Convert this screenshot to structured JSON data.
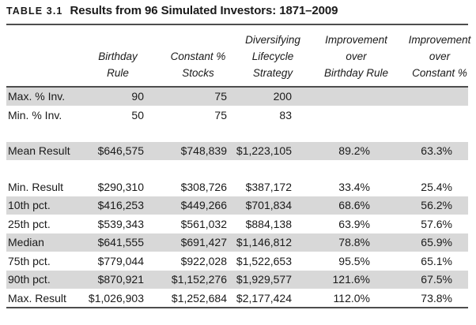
{
  "title": {
    "label": "TABLE 3.1",
    "text": "Results from 96 Simulated Investors: 1871–2009"
  },
  "table": {
    "columns": [
      "",
      "Birthday\nRule",
      "Constant %\nStocks",
      "Diversifying\nLifecycle\nStrategy",
      "Improvement\nover\nBirthday Rule",
      "Improvement\nover\nConstant %"
    ],
    "rows": [
      {
        "label": "Max. % Inv.",
        "values": [
          "90",
          "75",
          "200",
          "",
          ""
        ],
        "shaded": true,
        "blank": false
      },
      {
        "label": "Min. % Inv.",
        "values": [
          "50",
          "75",
          "83",
          "",
          ""
        ],
        "shaded": false,
        "blank": false
      },
      {
        "label": "",
        "values": [
          "",
          "",
          "",
          "",
          ""
        ],
        "shaded": false,
        "blank": true
      },
      {
        "label": "Mean Result",
        "values": [
          "$646,575",
          "$748,839",
          "$1,223,105",
          "89.2%",
          "63.3%"
        ],
        "shaded": true,
        "blank": false
      },
      {
        "label": "",
        "values": [
          "",
          "",
          "",
          "",
          ""
        ],
        "shaded": false,
        "blank": true
      },
      {
        "label": "Min. Result",
        "values": [
          "$290,310",
          "$308,726",
          "$387,172",
          "33.4%",
          "25.4%"
        ],
        "shaded": false,
        "blank": false
      },
      {
        "label": "10th pct.",
        "values": [
          "$416,253",
          "$449,266",
          "$701,834",
          "68.6%",
          "56.2%"
        ],
        "shaded": true,
        "blank": false
      },
      {
        "label": "25th pct.",
        "values": [
          "$539,343",
          "$561,032",
          "$884,138",
          "63.9%",
          "57.6%"
        ],
        "shaded": false,
        "blank": false
      },
      {
        "label": "Median",
        "values": [
          "$641,555",
          "$691,427",
          "$1,146,812",
          "78.8%",
          "65.9%"
        ],
        "shaded": true,
        "blank": false
      },
      {
        "label": "75th pct.",
        "values": [
          "$779,044",
          "$922,028",
          "$1,522,653",
          "95.5%",
          "65.1%"
        ],
        "shaded": false,
        "blank": false
      },
      {
        "label": "90th pct.",
        "values": [
          "$870,921",
          "$1,152,276",
          "$1,929,577",
          "121.6%",
          "67.5%"
        ],
        "shaded": true,
        "blank": false
      },
      {
        "label": "Max. Result",
        "values": [
          "$1,026,903",
          "$1,252,684",
          "$2,177,424",
          "112.0%",
          "73.8%"
        ],
        "shaded": false,
        "blank": false
      }
    ]
  },
  "colors": {
    "row_shade": "#d8d8d8",
    "rule": "#4d4d4d",
    "text": "#1a1a1a",
    "background": "#ffffff"
  }
}
